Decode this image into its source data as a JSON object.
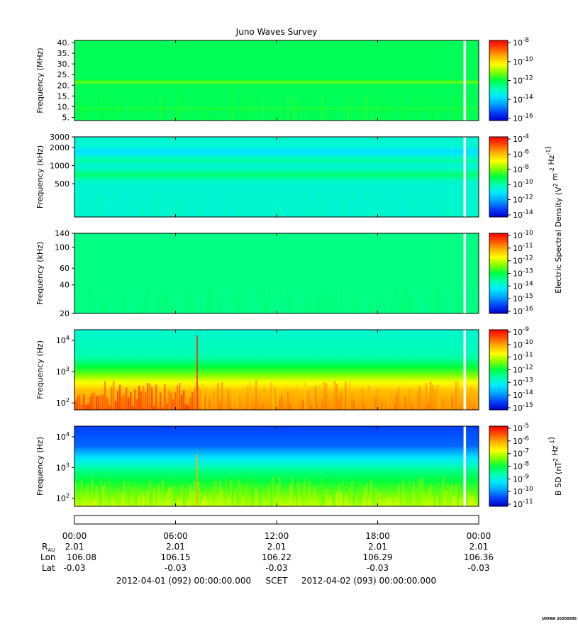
{
  "title": "Juno Waves Survey",
  "colors": {
    "spectrum": [
      "#0000c8",
      "#0040ff",
      "#00a0ff",
      "#00e8ff",
      "#00ffb0",
      "#00ff40",
      "#80ff00",
      "#ffff00",
      "#ffb000",
      "#ff5000",
      "#ff0000"
    ]
  },
  "chart_data": [
    {
      "type": "heatmap",
      "ylabel": "Frequency (MHz)",
      "yscale": "linear",
      "ylim": [
        3.5,
        41
      ],
      "yticks": [
        {
          "v": 40,
          "label": "40."
        },
        {
          "v": 35,
          "label": "35."
        },
        {
          "v": 30,
          "label": "30."
        },
        {
          "v": 25,
          "label": "25."
        },
        {
          "v": 20,
          "label": "20."
        },
        {
          "v": 15,
          "label": "15."
        },
        {
          "v": 10,
          "label": "10."
        },
        {
          "v": 5,
          "label": "5."
        }
      ],
      "background_level": 0.48,
      "bands": [
        {
          "y": 21.5,
          "width": 1.0,
          "level": 0.62
        },
        {
          "y": 9.0,
          "width": 0.7,
          "level": 0.55
        }
      ],
      "colorbar": {
        "label": "",
        "ticks": [
          {
            "base": "10",
            "exp": "-8"
          },
          {
            "base": "10",
            "exp": "-10"
          },
          {
            "base": "10",
            "exp": "-12"
          },
          {
            "base": "10",
            "exp": "-14"
          },
          {
            "base": "10",
            "exp": "-16"
          }
        ]
      }
    },
    {
      "type": "heatmap",
      "ylabel": "Frequency (kHz)",
      "yscale": "log",
      "ylim": [
        140,
        3000
      ],
      "yticks": [
        {
          "v": 3000,
          "label": "3000"
        },
        {
          "v": 2000,
          "label": "2000"
        },
        {
          "v": 1000,
          "label": "1000"
        },
        {
          "v": 500,
          "label": "500"
        }
      ],
      "background_level": 0.36,
      "bands": [
        {
          "y": 1700,
          "width": 0.03,
          "level": 0.28
        },
        {
          "y": 1200,
          "width": 0.02,
          "level": 0.42
        },
        {
          "y": 700,
          "width": 0.04,
          "level": 0.46
        }
      ],
      "colorbar": {
        "label": "Electric Spectral Density (V2 m-2 Hz-1)",
        "label_parts": [
          {
            "t": "Electric Spectral Density (V",
            "sup": false
          },
          {
            "t": "2",
            "sup": true
          },
          {
            "t": " m",
            "sup": false
          },
          {
            "t": "-2",
            "sup": true
          },
          {
            "t": " Hz",
            "sup": false
          },
          {
            "t": "-1",
            "sup": true
          },
          {
            "t": ")",
            "sup": false
          }
        ],
        "ticks": [
          {
            "base": "10",
            "exp": "-4"
          },
          {
            "base": "10",
            "exp": "-6"
          },
          {
            "base": "10",
            "exp": "-8"
          },
          {
            "base": "10",
            "exp": "-10"
          },
          {
            "base": "10",
            "exp": "-12"
          },
          {
            "base": "10",
            "exp": "-14"
          }
        ]
      }
    },
    {
      "type": "heatmap",
      "ylabel": "Frequency (kHz)",
      "yscale": "log",
      "ylim": [
        20,
        140
      ],
      "yticks": [
        {
          "v": 140,
          "label": "140"
        },
        {
          "v": 100,
          "label": "100"
        },
        {
          "v": 60,
          "label": "60"
        },
        {
          "v": 40,
          "label": "40"
        },
        {
          "v": 20,
          "label": "20"
        }
      ],
      "background_level": 0.44,
      "bands": [],
      "colorbar": {
        "label": "",
        "ticks": [
          {
            "base": "10",
            "exp": "-10"
          },
          {
            "base": "10",
            "exp": "-11"
          },
          {
            "base": "10",
            "exp": "-12"
          },
          {
            "base": "10",
            "exp": "-13"
          },
          {
            "base": "10",
            "exp": "-14"
          },
          {
            "base": "10",
            "exp": "-15"
          },
          {
            "base": "10",
            "exp": "-16"
          }
        ]
      }
    },
    {
      "type": "heatmap",
      "ylabel": "Frequency (Hz)",
      "yscale": "log",
      "ylim": [
        60,
        22000
      ],
      "yticks": [
        {
          "v": 10000,
          "base": "10",
          "exp": "4"
        },
        {
          "v": 1000,
          "base": "10",
          "exp": "3"
        },
        {
          "v": 100,
          "base": "10",
          "exp": "2"
        }
      ],
      "gradient": [
        {
          "f": 22000,
          "level": 0.36
        },
        {
          "f": 3000,
          "level": 0.4
        },
        {
          "f": 1000,
          "level": 0.55
        },
        {
          "f": 500,
          "level": 0.68
        },
        {
          "f": 250,
          "level": 0.78
        },
        {
          "f": 60,
          "level": 0.84
        }
      ],
      "event": {
        "hour": 7.25,
        "level": 0.95
      },
      "colorbar": {
        "label": "",
        "ticks": [
          {
            "base": "10",
            "exp": "-9"
          },
          {
            "base": "10",
            "exp": "-10"
          },
          {
            "base": "10",
            "exp": "-11"
          },
          {
            "base": "10",
            "exp": "-12"
          },
          {
            "base": "10",
            "exp": "-13"
          },
          {
            "base": "10",
            "exp": "-14"
          },
          {
            "base": "10",
            "exp": "-15"
          }
        ]
      }
    },
    {
      "type": "heatmap",
      "ylabel": "Frequency (Hz)",
      "yscale": "log",
      "ylim": [
        55,
        22000
      ],
      "yticks": [
        {
          "v": 10000,
          "base": "10",
          "exp": "4"
        },
        {
          "v": 1000,
          "base": "10",
          "exp": "3"
        },
        {
          "v": 100,
          "base": "10",
          "exp": "2"
        }
      ],
      "gradient": [
        {
          "f": 22000,
          "level": 0.1
        },
        {
          "f": 5000,
          "level": 0.14
        },
        {
          "f": 2000,
          "level": 0.3
        },
        {
          "f": 700,
          "level": 0.45
        },
        {
          "f": 200,
          "level": 0.55
        },
        {
          "f": 55,
          "level": 0.66
        }
      ],
      "event": {
        "hour": 7.25,
        "level": 0.8
      },
      "colorbar": {
        "label": "B SD (nT2 Hz-1)",
        "label_parts": [
          {
            "t": "B SD (nT",
            "sup": false
          },
          {
            "t": "2",
            "sup": true
          },
          {
            "t": " Hz",
            "sup": false
          },
          {
            "t": "-1",
            "sup": true
          },
          {
            "t": ")",
            "sup": false
          }
        ],
        "ticks": [
          {
            "base": "10",
            "exp": "-5"
          },
          {
            "base": "10",
            "exp": "-6"
          },
          {
            "base": "10",
            "exp": "-7"
          },
          {
            "base": "10",
            "exp": "-8"
          },
          {
            "base": "10",
            "exp": "-9"
          },
          {
            "base": "10",
            "exp": "-10"
          },
          {
            "base": "10",
            "exp": "-11"
          }
        ]
      }
    }
  ],
  "time_axis": {
    "range_hours": [
      0,
      24
    ],
    "data_gap_hour": 23.1,
    "ticks": [
      {
        "hour": 0,
        "label": "00:00",
        "r_au": "2.01",
        "lon": "106.08",
        "lat": "-0.03"
      },
      {
        "hour": 6,
        "label": "06:00",
        "r_au": "2.01",
        "lon": "106.15",
        "lat": "-0.03"
      },
      {
        "hour": 12,
        "label": "12:00",
        "r_au": "2.01",
        "lon": "106.22",
        "lat": "-0.03"
      },
      {
        "hour": 18,
        "label": "18:00",
        "r_au": "2.01",
        "lon": "106.29",
        "lat": "-0.03"
      },
      {
        "hour": 24,
        "label": "00:00",
        "r_au": "2.01",
        "lon": "106.36",
        "lat": "-0.03"
      }
    ],
    "row_labels": {
      "r_base": "R",
      "r_sub": "AU",
      "lon": "Lon",
      "lat": "Lat"
    },
    "start": "2012-04-01 (092) 00:00:00.000",
    "frame": "SCET",
    "end": "2012-04-02 (093) 00:00:00.000"
  },
  "footer": "UIOWA 20200306"
}
